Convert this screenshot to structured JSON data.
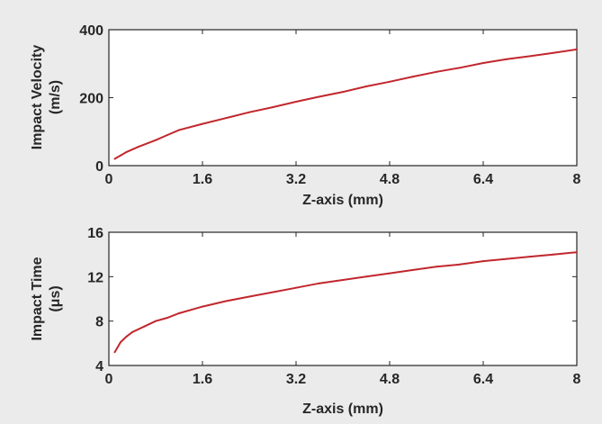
{
  "chart_data": [
    {
      "type": "line",
      "xlabel": "Z-axis (mm)",
      "ylabel": [
        "Impact Velocity",
        "(m/s)"
      ],
      "xlim": [
        0,
        8
      ],
      "ylim": [
        0,
        400
      ],
      "xticks": [
        0,
        1.6,
        3.2,
        4.8,
        6.4,
        8
      ],
      "xtick_labels": [
        "0",
        "1.6",
        "3.2",
        "4.8",
        "6.4",
        "8"
      ],
      "yticks": [
        0,
        200,
        400
      ],
      "ytick_labels": [
        "0",
        "200",
        "400"
      ],
      "grid": false,
      "color": "#c1272d",
      "series": [
        {
          "x": [
            0.1,
            0.2,
            0.3,
            0.5,
            0.8,
            1.0,
            1.2,
            1.6,
            2.0,
            2.4,
            2.8,
            3.2,
            3.6,
            4.0,
            4.4,
            4.8,
            5.2,
            5.6,
            6.0,
            6.4,
            6.8,
            7.2,
            7.6,
            8.0
          ],
          "y": [
            20,
            30,
            40,
            55,
            75,
            90,
            105,
            123,
            140,
            157,
            172,
            188,
            203,
            217,
            233,
            247,
            262,
            276,
            288,
            302,
            313,
            322,
            332,
            342
          ]
        }
      ]
    },
    {
      "type": "line",
      "xlabel": "Z-axis (mm)",
      "ylabel": [
        "Impact Time",
        "(μs)"
      ],
      "xlim": [
        0,
        8
      ],
      "ylim": [
        4,
        16
      ],
      "xticks": [
        0,
        1.6,
        3.2,
        4.8,
        6.4,
        8
      ],
      "xtick_labels": [
        "0",
        "1.6",
        "3.2",
        "4.8",
        "6.4",
        "8"
      ],
      "yticks": [
        4,
        8,
        12,
        16
      ],
      "ytick_labels": [
        "4",
        "8",
        "12",
        "16"
      ],
      "grid": false,
      "color": "#c1272d",
      "series": [
        {
          "x": [
            0.1,
            0.2,
            0.3,
            0.4,
            0.6,
            0.8,
            1.0,
            1.2,
            1.6,
            2.0,
            2.4,
            2.8,
            3.2,
            3.6,
            4.0,
            4.4,
            4.8,
            5.2,
            5.6,
            6.0,
            6.4,
            6.8,
            7.2,
            7.6,
            8.0
          ],
          "y": [
            5.2,
            6.1,
            6.6,
            7.0,
            7.5,
            8.0,
            8.3,
            8.7,
            9.3,
            9.8,
            10.2,
            10.6,
            11.0,
            11.4,
            11.7,
            12.0,
            12.3,
            12.6,
            12.9,
            13.1,
            13.4,
            13.6,
            13.8,
            14.0,
            14.2
          ]
        }
      ]
    }
  ]
}
